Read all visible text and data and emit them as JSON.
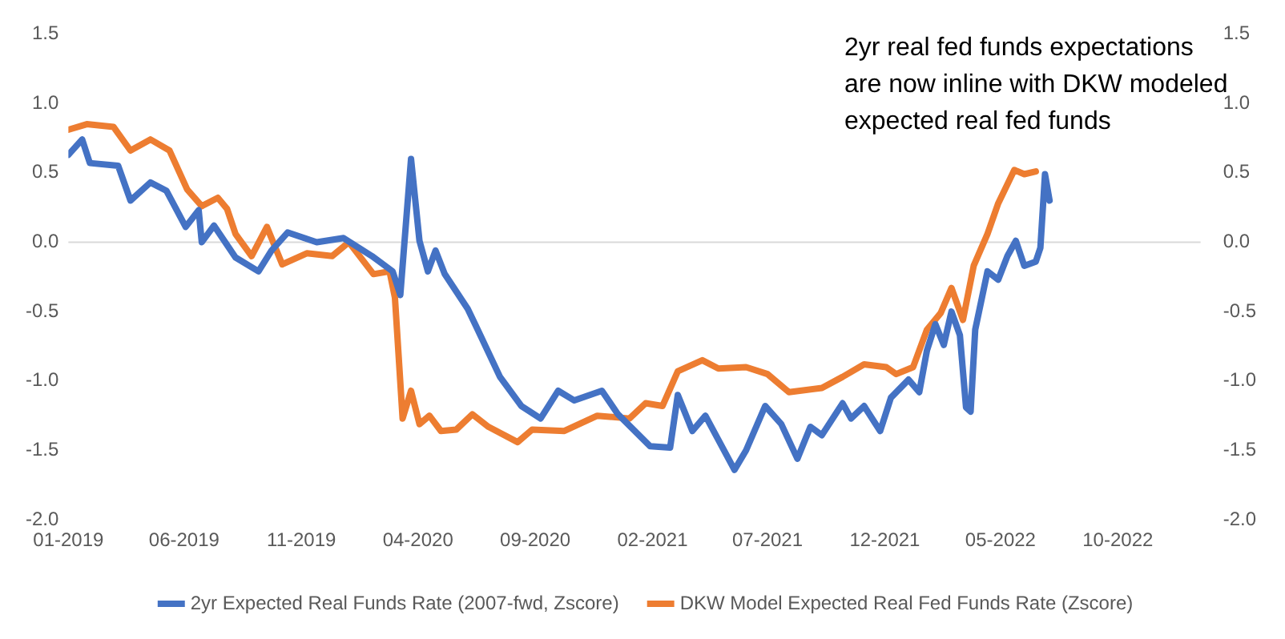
{
  "chart_data": {
    "type": "line",
    "annotations": [
      "2yr real fed funds expectations\nare now inline with DKW modeled\nexpected real fed funds"
    ],
    "xlim": [
      "2019-01-01",
      "2023-01-17"
    ],
    "xticks": [
      {
        "value": "2019-01-01",
        "label": "01-2019"
      },
      {
        "value": "2019-06-01",
        "label": "06-2019"
      },
      {
        "value": "2019-11-01",
        "label": "11-2019"
      },
      {
        "value": "2020-04-01",
        "label": "04-2020"
      },
      {
        "value": "2020-09-01",
        "label": "09-2020"
      },
      {
        "value": "2021-02-01",
        "label": "02-2021"
      },
      {
        "value": "2021-07-01",
        "label": "07-2021"
      },
      {
        "value": "2021-12-01",
        "label": "12-2021"
      },
      {
        "value": "2022-05-01",
        "label": "05-2022"
      },
      {
        "value": "2022-10-01",
        "label": "10-2022"
      }
    ],
    "ylim": [
      -2,
      1.5
    ],
    "yticks": [
      {
        "value": -2,
        "label": "-2.0"
      },
      {
        "value": -1.5,
        "label": "-1.5"
      },
      {
        "value": -1,
        "label": "-1.0"
      },
      {
        "value": -0.5,
        "label": "-0.5"
      },
      {
        "value": 0,
        "label": "0.0"
      },
      {
        "value": 0.5,
        "label": "0.5"
      },
      {
        "value": 1,
        "label": "1.0"
      },
      {
        "value": 1.5,
        "label": "1.5"
      }
    ],
    "y2lim": [
      -2,
      1.5
    ],
    "y2ticks": [
      {
        "value": -2,
        "label": "-2.0"
      },
      {
        "value": -1.5,
        "label": "-1.5"
      },
      {
        "value": -1,
        "label": "-1.0"
      },
      {
        "value": -0.5,
        "label": "-0.5"
      },
      {
        "value": 0,
        "label": "0.0"
      },
      {
        "value": 0.5,
        "label": "0.5"
      },
      {
        "value": 1,
        "label": "1.0"
      },
      {
        "value": 1.5,
        "label": "1.5"
      }
    ],
    "ref_lines": [
      {
        "axis": "y",
        "value": 0,
        "color": "#d9d9d9"
      }
    ],
    "grid": false,
    "legend": "bottom",
    "marker": "none",
    "line_style": "solid",
    "series": [
      {
        "name": "2yr Expected Real Funds Rate (2007-fwd, Zscore)",
        "color": "#4472c4",
        "x": [
          "2019-01-01",
          "2019-01-19",
          "2019-01-29",
          "2019-03-07",
          "2019-03-23",
          "2019-04-18",
          "2019-05-09",
          "2019-06-03",
          "2019-06-20",
          "2019-06-24",
          "2019-07-10",
          "2019-08-07",
          "2019-09-06",
          "2019-09-23",
          "2019-10-14",
          "2019-11-21",
          "2019-12-26",
          "2020-02-01",
          "2020-02-28",
          "2020-03-09",
          "2020-03-23",
          "2020-04-03",
          "2020-04-14",
          "2020-04-24",
          "2020-05-06",
          "2020-06-05",
          "2020-06-18",
          "2020-07-17",
          "2020-08-14",
          "2020-09-08",
          "2020-10-01",
          "2020-10-22",
          "2020-11-27",
          "2020-12-18",
          "2021-01-29",
          "2021-02-24",
          "2021-03-06",
          "2021-03-25",
          "2021-04-11",
          "2021-05-19",
          "2021-06-03",
          "2021-06-28",
          "2021-07-19",
          "2021-08-09",
          "2021-08-26",
          "2021-09-10",
          "2021-10-07",
          "2021-10-18",
          "2021-11-04",
          "2021-11-25",
          "2021-12-09",
          "2022-01-01",
          "2022-01-15",
          "2022-01-25",
          "2022-02-05",
          "2022-02-16",
          "2022-02-26",
          "2022-03-09",
          "2022-03-17",
          "2022-03-23",
          "2022-03-29",
          "2022-04-14",
          "2022-04-28",
          "2022-05-10",
          "2022-05-21",
          "2022-06-01",
          "2022-06-16",
          "2022-06-22",
          "2022-06-28",
          "2022-07-04"
        ],
        "values": [
          0.63,
          0.74,
          0.57,
          0.55,
          0.3,
          0.43,
          0.37,
          0.11,
          0.23,
          0.0,
          0.12,
          -0.11,
          -0.21,
          -0.06,
          0.07,
          0.0,
          0.03,
          -0.1,
          -0.21,
          -0.38,
          0.6,
          0.01,
          -0.21,
          -0.06,
          -0.23,
          -0.48,
          -0.63,
          -0.97,
          -1.18,
          -1.27,
          -1.07,
          -1.14,
          -1.07,
          -1.24,
          -1.47,
          -1.48,
          -1.1,
          -1.36,
          -1.25,
          -1.64,
          -1.5,
          -1.18,
          -1.31,
          -1.56,
          -1.33,
          -1.39,
          -1.16,
          -1.27,
          -1.18,
          -1.36,
          -1.12,
          -0.99,
          -1.08,
          -0.78,
          -0.59,
          -0.74,
          -0.5,
          -0.67,
          -1.19,
          -1.22,
          -0.63,
          -0.21,
          -0.27,
          -0.1,
          0.01,
          -0.17,
          -0.14,
          -0.04,
          0.49,
          0.3
        ]
      },
      {
        "name": "DKW Model Expected Real Fed Funds Rate (Zscore)",
        "color": "#ed7d31",
        "x": [
          "2019-01-01",
          "2019-01-25",
          "2019-03-01",
          "2019-03-23",
          "2019-04-18",
          "2019-05-13",
          "2019-06-05",
          "2019-06-24",
          "2019-07-15",
          "2019-07-27",
          "2019-08-07",
          "2019-08-28",
          "2019-09-17",
          "2019-10-07",
          "2019-11-08",
          "2019-12-11",
          "2020-01-02",
          "2020-02-03",
          "2020-02-24",
          "2020-03-02",
          "2020-03-12",
          "2020-03-23",
          "2020-04-03",
          "2020-04-16",
          "2020-05-01",
          "2020-05-21",
          "2020-06-11",
          "2020-07-02",
          "2020-08-09",
          "2020-08-28",
          "2020-10-09",
          "2020-11-21",
          "2021-01-02",
          "2021-01-23",
          "2021-02-14",
          "2021-03-06",
          "2021-04-07",
          "2021-04-28",
          "2021-06-03",
          "2021-07-01",
          "2021-07-29",
          "2021-09-10",
          "2021-10-07",
          "2021-11-04",
          "2021-12-03",
          "2021-12-16",
          "2022-01-07",
          "2022-01-25",
          "2022-02-12",
          "2022-02-26",
          "2022-03-13",
          "2022-03-27",
          "2022-04-14",
          "2022-04-28",
          "2022-05-19",
          "2022-06-01",
          "2022-06-16"
        ],
        "values": [
          0.81,
          0.85,
          0.83,
          0.66,
          0.74,
          0.66,
          0.38,
          0.26,
          0.32,
          0.24,
          0.06,
          -0.1,
          0.11,
          -0.16,
          -0.08,
          -0.1,
          0.0,
          -0.23,
          -0.21,
          -0.4,
          -1.27,
          -1.07,
          -1.31,
          -1.25,
          -1.36,
          -1.35,
          -1.24,
          -1.33,
          -1.44,
          -1.35,
          -1.36,
          -1.25,
          -1.27,
          -1.16,
          -1.18,
          -0.93,
          -0.85,
          -0.91,
          -0.9,
          -0.95,
          -1.08,
          -1.05,
          -0.97,
          -0.88,
          -0.9,
          -0.95,
          -0.9,
          -0.63,
          -0.51,
          -0.33,
          -0.56,
          -0.17,
          0.06,
          0.28,
          0.52,
          0.49,
          0.51
        ]
      }
    ]
  }
}
